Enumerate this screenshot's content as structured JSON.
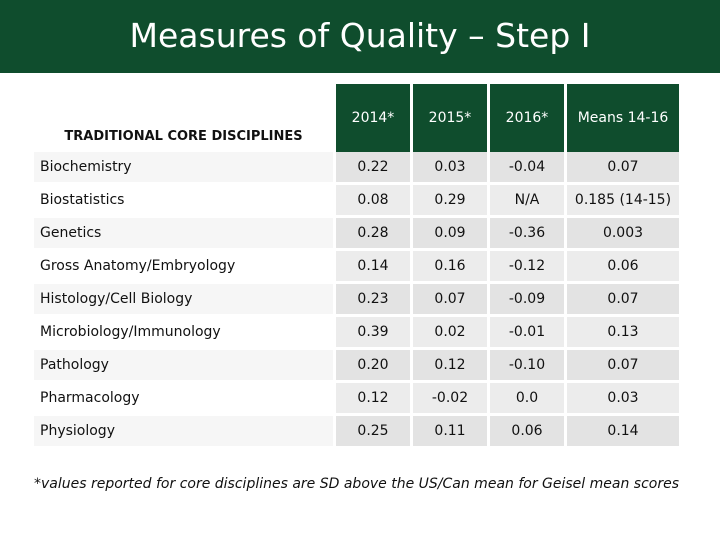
{
  "title": "Measures of Quality – Step I",
  "table": {
    "corner_label": "TRADITIONAL CORE DISCIPLINES",
    "columns": [
      "2014*",
      "2015*",
      "2016*",
      "Means 14-16"
    ],
    "rows": [
      {
        "discipline": "Biochemistry",
        "values": [
          "0.22",
          "0.03",
          "-0.04",
          "0.07"
        ]
      },
      {
        "discipline": "Biostatistics",
        "values": [
          "0.08",
          "0.29",
          "N/A",
          "0.185 (14-15)"
        ]
      },
      {
        "discipline": "Genetics",
        "values": [
          "0.28",
          "0.09",
          "-0.36",
          "0.003"
        ]
      },
      {
        "discipline": "Gross Anatomy/Embryology",
        "values": [
          "0.14",
          "0.16",
          "-0.12",
          "0.06"
        ]
      },
      {
        "discipline": "Histology/Cell Biology",
        "values": [
          "0.23",
          "0.07",
          "-0.09",
          "0.07"
        ]
      },
      {
        "discipline": "Microbiology/Immunology",
        "values": [
          "0.39",
          "0.02",
          "-0.01",
          "0.13"
        ]
      },
      {
        "discipline": "Pathology",
        "values": [
          "0.20",
          "0.12",
          "-0.10",
          "0.07"
        ]
      },
      {
        "discipline": "Pharmacology",
        "values": [
          "0.12",
          "-0.02",
          "0.0",
          "0.03"
        ]
      },
      {
        "discipline": "Physiology",
        "values": [
          "0.25",
          "0.11",
          "0.06",
          "0.14"
        ]
      }
    ]
  },
  "footnote": "*values reported for core disciplines are SD above the US/Can mean for Geisel mean scores",
  "colors": {
    "header_green": "#0f4d2d"
  }
}
